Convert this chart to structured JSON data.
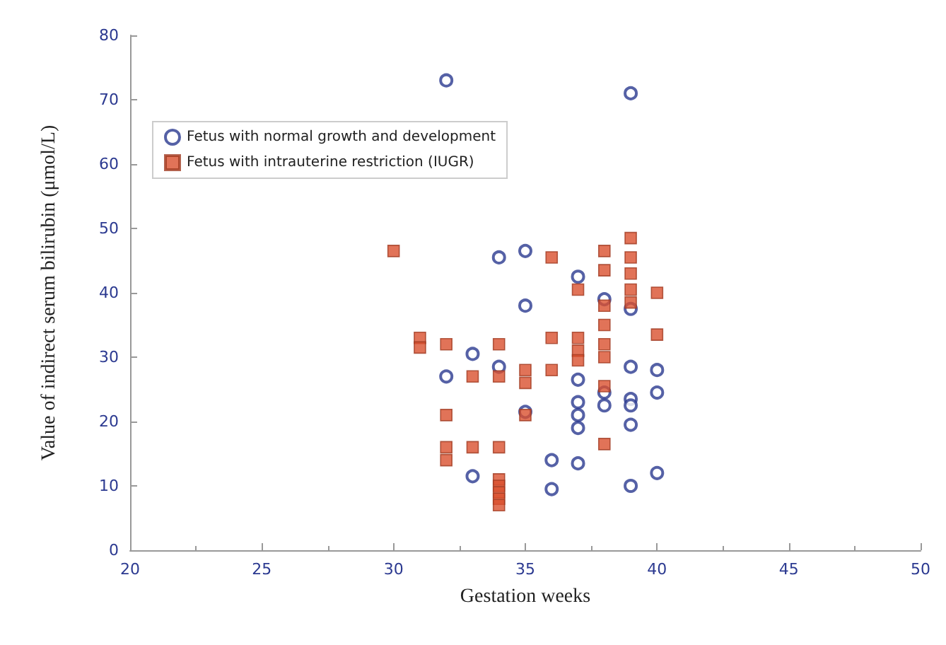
{
  "chart_data": {
    "type": "scatter",
    "xlabel": "Gestation weeks",
    "ylabel": "Value of indirect serum bilirubin (μmol/L)",
    "xlim": [
      20,
      50
    ],
    "xticks": [
      20,
      25,
      30,
      35,
      40,
      45,
      50
    ],
    "ylim": [
      0,
      80
    ],
    "yticks": [
      0,
      10,
      20,
      30,
      40,
      50,
      60,
      70,
      80
    ],
    "grid": false,
    "legend": "top left",
    "series": [
      {
        "name": "Fetus with normal growth and development",
        "color": "#2b3990",
        "marker": "circle",
        "x": [
          32,
          39,
          34,
          35,
          35,
          37,
          38,
          39,
          33,
          32,
          34,
          35,
          37,
          37,
          37,
          37,
          37,
          38,
          38,
          39,
          39,
          39,
          39,
          39,
          40,
          40,
          40,
          33,
          36,
          36
        ],
        "values": [
          73,
          71,
          45.5,
          46.5,
          38,
          42.5,
          39,
          37.5,
          30.5,
          27,
          28.5,
          21.5,
          26.5,
          23,
          21,
          19,
          13.5,
          24.5,
          22.5,
          28.5,
          23.5,
          22.5,
          19.5,
          10,
          28,
          24.5,
          12,
          11.5,
          14,
          9.5
        ]
      },
      {
        "name": "Fetus with intrauterine restriction (IUGR)",
        "color": "#d9502e",
        "marker": "square",
        "x": [
          30,
          31,
          31,
          32,
          32,
          32,
          32,
          33,
          33,
          34,
          34,
          34,
          34,
          34,
          34,
          34,
          34,
          35,
          35,
          35,
          36,
          36,
          36,
          37,
          37,
          37,
          37,
          38,
          38,
          38,
          38,
          38,
          38,
          38,
          38,
          39,
          39,
          39,
          39,
          39,
          40,
          40
        ],
        "values": [
          46.5,
          33,
          31.5,
          32,
          21,
          16,
          14,
          27,
          16,
          32,
          27,
          16,
          11,
          10,
          9,
          8,
          7,
          28,
          26,
          21,
          45.5,
          33,
          28,
          40.5,
          33,
          31,
          29.5,
          46.5,
          43.5,
          38,
          35,
          32,
          30,
          25.5,
          16.5,
          48.5,
          45.5,
          43,
          40.5,
          38.5,
          40,
          33.5
        ]
      }
    ]
  }
}
